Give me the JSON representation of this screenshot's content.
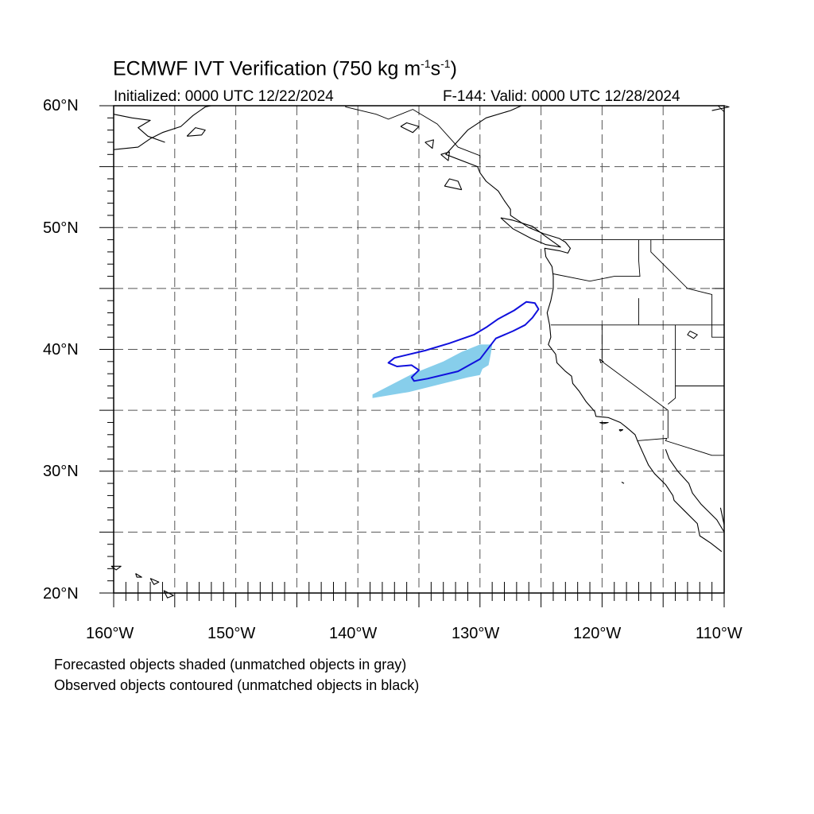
{
  "title": {
    "prefix": "ECMWF IVT Verification (750 kg m",
    "exp1": "-1",
    "mid": "s",
    "exp2": "-1",
    "suffix": ")"
  },
  "initialized": "Initialized: 0000 UTC 12/22/2024",
  "valid": "F-144: Valid: 0000 UTC 12/28/2024",
  "lat_labels": [
    "60°N",
    "50°N",
    "40°N",
    "30°N",
    "20°N"
  ],
  "lon_labels": [
    "160°W",
    "150°W",
    "140°W",
    "130°W",
    "120°W",
    "110°W"
  ],
  "footnotes": [
    "Forecasted objects shaded (unmatched objects in gray)",
    "Observed objects contoured (unmatched objects in black)"
  ],
  "map_extent": {
    "lon_min": -160,
    "lon_max": -110,
    "lat_min": 20,
    "lat_max": 60
  },
  "colors": {
    "forecast_fill": "#87ceeb",
    "observed_contour": "#1010dd",
    "coastline": "#000000",
    "gridline": "#555555"
  },
  "forecast_object": [
    [
      -138.8,
      36.0
    ],
    [
      -135.8,
      36.5
    ],
    [
      -133.0,
      37.2
    ],
    [
      -131.0,
      37.7
    ],
    [
      -130.0,
      37.9
    ],
    [
      -129.8,
      38.4
    ],
    [
      -129.3,
      38.7
    ],
    [
      -129.1,
      39.7
    ],
    [
      -129.0,
      40.4
    ],
    [
      -130.0,
      40.4
    ],
    [
      -131.5,
      39.8
    ],
    [
      -133.0,
      39.0
    ],
    [
      -135.5,
      38.0
    ],
    [
      -138.8,
      36.3
    ]
  ],
  "observed_object": [
    [
      -137.5,
      38.9
    ],
    [
      -137.0,
      39.3
    ],
    [
      -134.5,
      39.9
    ],
    [
      -132.5,
      40.5
    ],
    [
      -130.5,
      41.2
    ],
    [
      -129.5,
      41.8
    ],
    [
      -128.5,
      42.5
    ],
    [
      -127.2,
      43.2
    ],
    [
      -126.2,
      43.9
    ],
    [
      -125.5,
      43.8
    ],
    [
      -125.2,
      43.3
    ],
    [
      -125.7,
      42.6
    ],
    [
      -126.3,
      42.0
    ],
    [
      -127.3,
      41.5
    ],
    [
      -128.7,
      40.9
    ],
    [
      -130.0,
      39.2
    ],
    [
      -131.8,
      38.2
    ],
    [
      -134.3,
      37.6
    ],
    [
      -135.4,
      37.4
    ],
    [
      -135.6,
      37.7
    ],
    [
      -135.0,
      38.3
    ],
    [
      -135.6,
      38.7
    ],
    [
      -136.8,
      38.6
    ]
  ],
  "coastlines": [
    [
      [
        -126.6,
        60.0
      ],
      [
        -127.5,
        59.6
      ],
      [
        -129.5,
        59.0
      ],
      [
        -131.0,
        58.0
      ],
      [
        -131.9,
        57.0
      ],
      [
        -132.8,
        56.0
      ],
      [
        -130.2,
        55.0
      ],
      [
        -130.0,
        54.5
      ],
      [
        -129.5,
        53.8
      ],
      [
        -128.5,
        53.0
      ],
      [
        -128.0,
        52.2
      ],
      [
        -127.5,
        51.5
      ],
      [
        -127.5,
        51.0
      ],
      [
        -126.0,
        50.0
      ],
      [
        -124.8,
        49.5
      ],
      [
        -123.5,
        49.1
      ],
      [
        -123.0,
        48.8
      ],
      [
        -122.6,
        48.3
      ],
      [
        -122.8,
        47.9
      ],
      [
        -123.5,
        48.1
      ],
      [
        -124.7,
        48.3
      ],
      [
        -124.6,
        47.6
      ],
      [
        -124.1,
        46.8
      ],
      [
        -124.0,
        46.0
      ],
      [
        -124.0,
        45.0
      ],
      [
        -124.2,
        44.0
      ],
      [
        -124.5,
        43.0
      ],
      [
        -124.3,
        42.0
      ],
      [
        -124.2,
        41.0
      ],
      [
        -124.4,
        40.4
      ],
      [
        -123.8,
        39.6
      ],
      [
        -123.7,
        38.9
      ],
      [
        -123.0,
        38.2
      ],
      [
        -122.5,
        37.8
      ],
      [
        -122.4,
        37.2
      ],
      [
        -121.9,
        36.6
      ],
      [
        -121.3,
        35.7
      ],
      [
        -120.6,
        34.9
      ],
      [
        -120.5,
        34.5
      ],
      [
        -119.5,
        34.4
      ],
      [
        -118.5,
        34.0
      ],
      [
        -118.0,
        33.6
      ],
      [
        -117.3,
        33.0
      ],
      [
        -117.1,
        32.5
      ],
      [
        -116.7,
        31.6
      ],
      [
        -116.2,
        30.5
      ],
      [
        -115.7,
        29.8
      ],
      [
        -114.8,
        28.9
      ],
      [
        -114.2,
        28.0
      ],
      [
        -114.1,
        27.6
      ],
      [
        -113.3,
        26.8
      ],
      [
        -112.2,
        25.7
      ],
      [
        -112.0,
        24.7
      ],
      [
        -111.1,
        24.1
      ],
      [
        -110.2,
        23.4
      ]
    ],
    [
      [
        -114.8,
        31.8
      ],
      [
        -114.5,
        31.0
      ],
      [
        -113.8,
        30.0
      ],
      [
        -112.9,
        29.0
      ],
      [
        -112.6,
        28.2
      ],
      [
        -111.9,
        27.3
      ],
      [
        -110.6,
        26.0
      ],
      [
        -110.0,
        25.0
      ]
    ],
    [
      [
        -110.0,
        25.6
      ],
      [
        -110.3,
        27.0
      ]
    ],
    [
      [
        -160.0,
        59.3
      ],
      [
        -158.5,
        59.0
      ],
      [
        -157.0,
        58.8
      ],
      [
        -158.0,
        58.2
      ],
      [
        -157.2,
        57.5
      ],
      [
        -155.8,
        57.0
      ]
    ],
    [
      [
        -160.0,
        56.4
      ],
      [
        -158.0,
        56.6
      ],
      [
        -157.0,
        57.3
      ],
      [
        -156.0,
        57.8
      ],
      [
        -154.5,
        58.3
      ],
      [
        -153.5,
        59.2
      ],
      [
        -152.5,
        59.9
      ],
      [
        -152.0,
        60.0
      ]
    ],
    [
      [
        -111.0,
        59.6
      ],
      [
        -109.6,
        59.9
      ],
      [
        -110.0,
        60.0
      ]
    ],
    [
      [
        -154.0,
        57.5
      ],
      [
        -152.8,
        57.6
      ],
      [
        -152.5,
        58.0
      ],
      [
        -153.3,
        58.2
      ],
      [
        -154.0,
        57.5
      ]
    ],
    [
      [
        -131.5,
        53.1
      ],
      [
        -131.8,
        53.8
      ],
      [
        -132.5,
        54.0
      ],
      [
        -132.9,
        53.4
      ],
      [
        -131.5,
        53.1
      ]
    ],
    [
      [
        -128.3,
        50.8
      ],
      [
        -127.3,
        50.6
      ],
      [
        -125.7,
        50.1
      ],
      [
        -124.8,
        49.4
      ],
      [
        -123.4,
        48.4
      ],
      [
        -124.6,
        48.6
      ],
      [
        -125.8,
        49.1
      ],
      [
        -127.3,
        49.9
      ],
      [
        -128.3,
        50.8
      ]
    ],
    [
      [
        -118.6,
        33.4
      ],
      [
        -118.3,
        33.4
      ],
      [
        -118.5,
        33.3
      ],
      [
        -118.6,
        33.4
      ]
    ],
    [
      [
        -120.2,
        34.0
      ],
      [
        -119.5,
        34.0
      ],
      [
        -119.9,
        33.9
      ],
      [
        -120.2,
        34.0
      ]
    ],
    [
      [
        -118.4,
        29.1
      ],
      [
        -118.2,
        29.0
      ]
    ],
    [
      [
        -160.2,
        22.2
      ],
      [
        -159.4,
        22.2
      ],
      [
        -159.8,
        21.9
      ],
      [
        -160.2,
        22.2
      ]
    ],
    [
      [
        -158.2,
        21.6
      ],
      [
        -157.7,
        21.3
      ],
      [
        -158.1,
        21.3
      ],
      [
        -158.2,
        21.6
      ]
    ],
    [
      [
        -157.0,
        21.2
      ],
      [
        -156.3,
        20.9
      ],
      [
        -156.7,
        20.7
      ],
      [
        -157.0,
        21.2
      ]
    ],
    [
      [
        -155.9,
        20.2
      ],
      [
        -155.1,
        19.8
      ],
      [
        -155.6,
        19.6
      ],
      [
        -155.9,
        20.2
      ]
    ],
    [
      [
        -136.5,
        58.3
      ],
      [
        -135.5,
        57.8
      ],
      [
        -135.0,
        58.3
      ],
      [
        -136.0,
        58.6
      ],
      [
        -136.5,
        58.3
      ]
    ],
    [
      [
        -134.5,
        57.0
      ],
      [
        -133.9,
        56.5
      ],
      [
        -133.8,
        57.2
      ],
      [
        -134.5,
        57.0
      ]
    ],
    [
      [
        -133.2,
        56.0
      ],
      [
        -132.6,
        55.5
      ],
      [
        -132.5,
        56.2
      ],
      [
        -133.2,
        56.0
      ]
    ]
  ],
  "borders": [
    [
      [
        -141.0,
        60.0
      ],
      [
        -141.0,
        59.9
      ],
      [
        -138.5,
        59.3
      ],
      [
        -137.5,
        58.9
      ],
      [
        -135.5,
        59.7
      ],
      [
        -133.5,
        58.5
      ],
      [
        -131.8,
        56.6
      ],
      [
        -130.0,
        55.9
      ],
      [
        -130.0,
        55.2
      ]
    ],
    [
      [
        -123.2,
        49.0
      ],
      [
        -110.0,
        49.0
      ]
    ],
    [
      [
        -124.2,
        42.0
      ],
      [
        -110.0,
        42.0
      ]
    ],
    [
      [
        -124.0,
        46.2
      ],
      [
        -121.0,
        45.6
      ],
      [
        -119.0,
        46.0
      ],
      [
        -116.9,
        46.0
      ],
      [
        -117.0,
        47.3
      ],
      [
        -117.0,
        49.0
      ]
    ],
    [
      [
        -117.0,
        44.2
      ],
      [
        -117.0,
        42.0
      ]
    ],
    [
      [
        -116.0,
        49.0
      ],
      [
        -116.0,
        48.0
      ],
      [
        -114.5,
        46.5
      ],
      [
        -113.0,
        45.0
      ],
      [
        -111.0,
        44.5
      ],
      [
        -111.0,
        42.0
      ]
    ],
    [
      [
        -111.0,
        45.0
      ],
      [
        -110.0,
        45.0
      ]
    ],
    [
      [
        -111.0,
        42.0
      ],
      [
        -111.0,
        41.0
      ],
      [
        -110.0,
        41.0
      ]
    ],
    [
      [
        -120.0,
        42.0
      ],
      [
        -120.0,
        39.0
      ],
      [
        -114.6,
        35.0
      ],
      [
        -114.6,
        32.7
      ]
    ],
    [
      [
        -114.0,
        42.0
      ],
      [
        -114.0,
        36.0
      ],
      [
        -114.6,
        35.5
      ]
    ],
    [
      [
        -114.0,
        37.0
      ],
      [
        -110.0,
        37.0
      ]
    ],
    [
      [
        -117.1,
        32.5
      ],
      [
        -114.7,
        32.7
      ],
      [
        -114.8,
        32.5
      ],
      [
        -111.0,
        31.3
      ],
      [
        -110.0,
        31.3
      ]
    ],
    [
      [
        -110.0,
        59.5
      ],
      [
        -110.5,
        60.0
      ]
    ]
  ],
  "lakes": [
    [
      [
        -112.8,
        41.5
      ],
      [
        -112.2,
        41.2
      ],
      [
        -112.5,
        40.9
      ],
      [
        -113.0,
        41.2
      ],
      [
        -112.8,
        41.5
      ]
    ],
    [
      [
        -120.2,
        39.2
      ],
      [
        -119.9,
        39.0
      ],
      [
        -120.1,
        38.9
      ],
      [
        -120.2,
        39.2
      ]
    ]
  ]
}
